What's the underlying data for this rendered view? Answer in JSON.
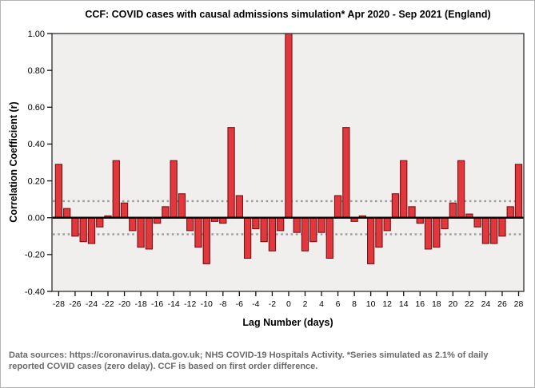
{
  "window": {
    "title": "CCF: COVID cases with causal admissions simulation* Apr 2020 - Sep 2021 (England)"
  },
  "footer": {
    "lines": [
      "Data sources: https://coronavirus.data.gov.uk; NHS COVID-19 Hospitals Activity. *Series simulated as 2.1% of daily",
      "reported COVID cases (zero delay). CCF is based on first order difference."
    ]
  },
  "chart_data": {
    "type": "bar",
    "title": "CCF: COVID cases with causal admissions simulation* Apr 2020 - Sep 2021 (England)",
    "xlabel": "Lag Number (days)",
    "ylabel": "Correlation Coefficient (r)",
    "ylim": [
      -0.4,
      1.0
    ],
    "ytick_step": 0.2,
    "ytick_labels": [
      "1.00",
      "0.80",
      "0.60",
      "0.40",
      "0.20",
      "0.00",
      "-0.20",
      "-0.40"
    ],
    "xtick_step": 2,
    "xlim": [
      -28,
      28
    ],
    "grid": false,
    "legend": null,
    "confidence_bounds": {
      "upper": 0.09,
      "lower": -0.09,
      "style": "dashed"
    },
    "x": [
      -28,
      -27,
      -26,
      -25,
      -24,
      -23,
      -22,
      -21,
      -20,
      -19,
      -18,
      -17,
      -16,
      -15,
      -14,
      -13,
      -12,
      -11,
      -10,
      -9,
      -8,
      -7,
      -6,
      -5,
      -4,
      -3,
      -2,
      -1,
      0,
      1,
      2,
      3,
      4,
      5,
      6,
      7,
      8,
      9,
      10,
      11,
      12,
      13,
      14,
      15,
      16,
      17,
      18,
      19,
      20,
      21,
      22,
      23,
      24,
      25,
      26,
      27,
      28
    ],
    "values": [
      0.29,
      0.05,
      -0.1,
      -0.13,
      -0.14,
      -0.05,
      0.01,
      0.31,
      0.08,
      -0.07,
      -0.16,
      -0.17,
      -0.03,
      0.06,
      0.31,
      0.13,
      -0.07,
      -0.16,
      -0.25,
      -0.02,
      -0.03,
      0.49,
      0.12,
      -0.22,
      -0.06,
      -0.13,
      -0.18,
      -0.07,
      1.0,
      -0.08,
      -0.18,
      -0.13,
      -0.08,
      -0.22,
      0.12,
      0.49,
      -0.02,
      0.01,
      -0.25,
      -0.16,
      -0.07,
      0.13,
      0.31,
      0.06,
      -0.03,
      -0.17,
      -0.16,
      -0.06,
      0.08,
      0.31,
      0.02,
      -0.05,
      -0.14,
      -0.14,
      -0.1,
      0.06,
      0.29
    ],
    "colors": {
      "bar_fill": "#e0383c",
      "bar_stroke": "#7c1013",
      "plot_bg": "#f0efed",
      "frame": "#3c3c3c",
      "zero_line": "#000000",
      "confidence_line": "#9b9b9b",
      "text": "#000000",
      "footer_text": "#696969"
    }
  }
}
